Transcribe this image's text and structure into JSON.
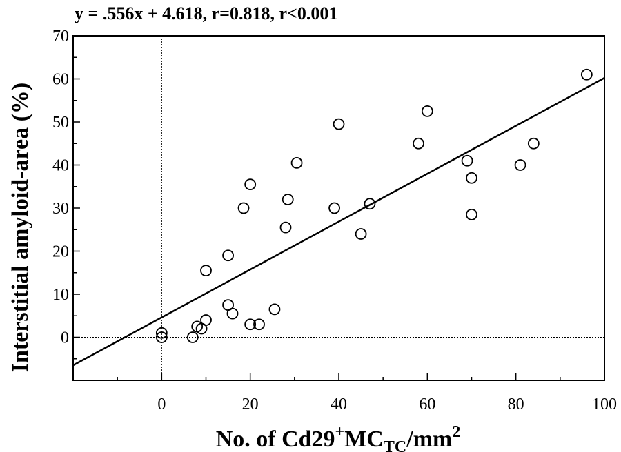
{
  "chart_data": {
    "type": "scatter",
    "title": "y = .556x + 4.618, r=0.818, r<0.001",
    "xlabel": {
      "main": "No. of Cd29",
      "sup": "+",
      "mid": "MC",
      "sub": "TC",
      "unit": "/mm",
      "sup2": "2"
    },
    "ylabel": "Interstitial amyloid-area (%)",
    "xlim": [
      -20,
      100
    ],
    "ylim": [
      -10,
      70
    ],
    "xticks": [
      0,
      20,
      40,
      60,
      80,
      100
    ],
    "yticks": [
      0,
      10,
      20,
      30,
      40,
      50,
      60,
      70
    ],
    "regression": {
      "slope": 0.556,
      "intercept": 4.618
    },
    "reference_lines": {
      "x": 0,
      "y": 0,
      "style": "dotted"
    },
    "marker": "open-circle",
    "points": [
      {
        "x": 0,
        "y": 1
      },
      {
        "x": 0,
        "y": 0
      },
      {
        "x": 7,
        "y": 0
      },
      {
        "x": 8,
        "y": 2.5
      },
      {
        "x": 9,
        "y": 2
      },
      {
        "x": 10,
        "y": 4
      },
      {
        "x": 10,
        "y": 15.5
      },
      {
        "x": 15,
        "y": 19
      },
      {
        "x": 15,
        "y": 7.5
      },
      {
        "x": 16,
        "y": 5.5
      },
      {
        "x": 18.5,
        "y": 30
      },
      {
        "x": 20,
        "y": 35.5
      },
      {
        "x": 20,
        "y": 3
      },
      {
        "x": 22,
        "y": 3
      },
      {
        "x": 25.5,
        "y": 6.5
      },
      {
        "x": 28,
        "y": 25.5
      },
      {
        "x": 28.5,
        "y": 32
      },
      {
        "x": 30.5,
        "y": 40.5
      },
      {
        "x": 39,
        "y": 30
      },
      {
        "x": 40,
        "y": 49.5
      },
      {
        "x": 45,
        "y": 24
      },
      {
        "x": 47,
        "y": 31
      },
      {
        "x": 58,
        "y": 45
      },
      {
        "x": 60,
        "y": 52.5
      },
      {
        "x": 69,
        "y": 41
      },
      {
        "x": 70,
        "y": 37
      },
      {
        "x": 70,
        "y": 28.5
      },
      {
        "x": 81,
        "y": 40
      },
      {
        "x": 84,
        "y": 45
      },
      {
        "x": 96,
        "y": 61
      }
    ]
  }
}
